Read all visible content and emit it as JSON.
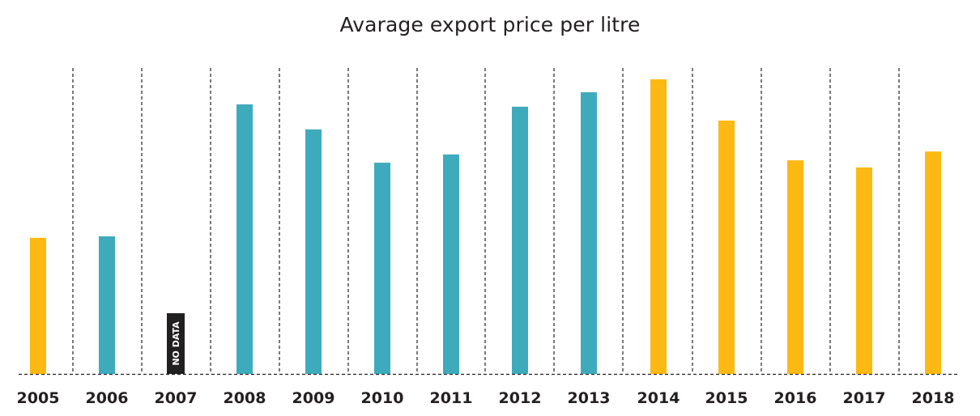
{
  "colors": {
    "teal": "#3eabbc",
    "yellow": "#fdb913",
    "nodata": "#231f20",
    "grid": "#231f20",
    "text": "#231f20"
  },
  "chart_data": {
    "type": "bar",
    "title": "Avarage export price per litre",
    "xlabel": "",
    "ylabel": "",
    "y_axis_shown": false,
    "value_units": "relative (no axis scale shown; tallest bar 2014 = 100)",
    "ylim": [
      0,
      100
    ],
    "grid": "vertical dashed separators between categories",
    "categories": [
      "2005",
      "2006",
      "2007",
      "2008",
      "2009",
      "2010",
      "2011",
      "2012",
      "2013",
      "2014",
      "2015",
      "2016",
      "2017",
      "2018"
    ],
    "values": [
      46.2,
      46.7,
      null,
      91.5,
      83.0,
      71.7,
      74.5,
      90.7,
      95.6,
      100,
      86.0,
      72.5,
      70.1,
      75.5
    ],
    "bar_colors": [
      "yellow",
      "teal",
      "nodata",
      "teal",
      "teal",
      "teal",
      "teal",
      "teal",
      "teal",
      "yellow",
      "yellow",
      "yellow",
      "yellow",
      "yellow"
    ],
    "annotations": [
      {
        "category": "2007",
        "text": "NO DATA",
        "placeholder_height": 20.6
      }
    ]
  }
}
